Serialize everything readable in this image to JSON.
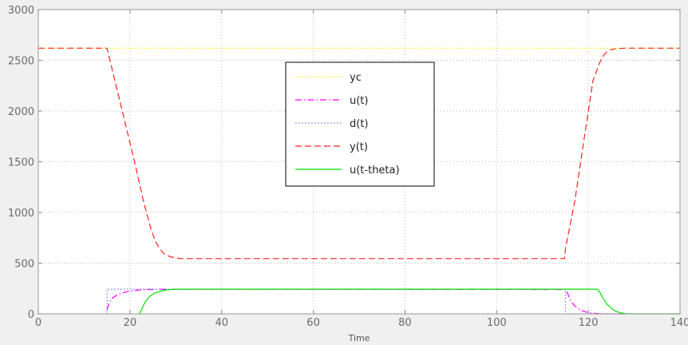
{
  "chart_data": {
    "type": "line",
    "xlabel": "Time",
    "ylabel": "",
    "title": "",
    "xlim": [
      0,
      140
    ],
    "ylim": [
      0,
      3000
    ],
    "xticks": [
      0,
      20,
      40,
      60,
      80,
      100,
      120,
      140
    ],
    "yticks": [
      0,
      500,
      1000,
      1500,
      2000,
      2500,
      3000
    ],
    "grid": true,
    "legend_position": "upper-center",
    "series": [
      {
        "name": "yc",
        "color": "#ffff00",
        "dash": "dotted",
        "x": [
          0,
          140
        ],
        "y": [
          2620,
          2620
        ]
      },
      {
        "name": "u(t)",
        "color": "#ff00ff",
        "dash": "dashdot",
        "x": [
          15,
          15.5,
          16,
          17,
          18,
          19,
          20,
          22,
          24,
          26,
          28,
          29.5,
          115,
          115.5,
          116,
          117,
          118,
          119,
          120,
          121,
          122,
          124,
          126,
          128
        ],
        "y": [
          40,
          110,
          150,
          180,
          200,
          215,
          225,
          235,
          240,
          242,
          243,
          243,
          240,
          200,
          140,
          80,
          45,
          25,
          12,
          6,
          3,
          1,
          0,
          0
        ]
      },
      {
        "name": "d(t)",
        "color": "#7070ff",
        "dash": "dotted",
        "x": [
          15,
          15,
          29.5,
          115,
          115,
          128
        ],
        "y": [
          0,
          243,
          243,
          243,
          0,
          0
        ]
      },
      {
        "name": "y(t)",
        "color": "#ff2020",
        "dash": "dashed",
        "x": [
          0,
          15,
          21,
          23,
          24.5,
          25.5,
          26.5,
          27.5,
          29,
          31,
          40,
          60,
          80,
          100,
          114.8,
          115,
          117,
          119,
          121,
          122.5,
          123.5,
          124.5,
          126,
          128,
          140
        ],
        "y": [
          2620,
          2620,
          1500,
          1100,
          850,
          720,
          640,
          590,
          560,
          545,
          545,
          545,
          545,
          545,
          545,
          640,
          1100,
          1700,
          2300,
          2480,
          2560,
          2600,
          2615,
          2620,
          2620
        ]
      },
      {
        "name": "u(t-theta)",
        "color": "#00e000",
        "dash": "solid",
        "x": [
          22,
          22.5,
          23,
          23.5,
          24,
          25,
          26,
          27,
          28,
          30,
          40,
          60,
          80,
          100,
          115,
          121.8,
          122,
          122.5,
          123,
          124,
          125,
          126,
          127,
          128,
          130,
          140
        ],
        "y": [
          0,
          40,
          90,
          130,
          160,
          195,
          215,
          228,
          236,
          243,
          243,
          243,
          243,
          243,
          243,
          243,
          240,
          215,
          170,
          100,
          55,
          25,
          10,
          3,
          0,
          0
        ]
      }
    ]
  }
}
